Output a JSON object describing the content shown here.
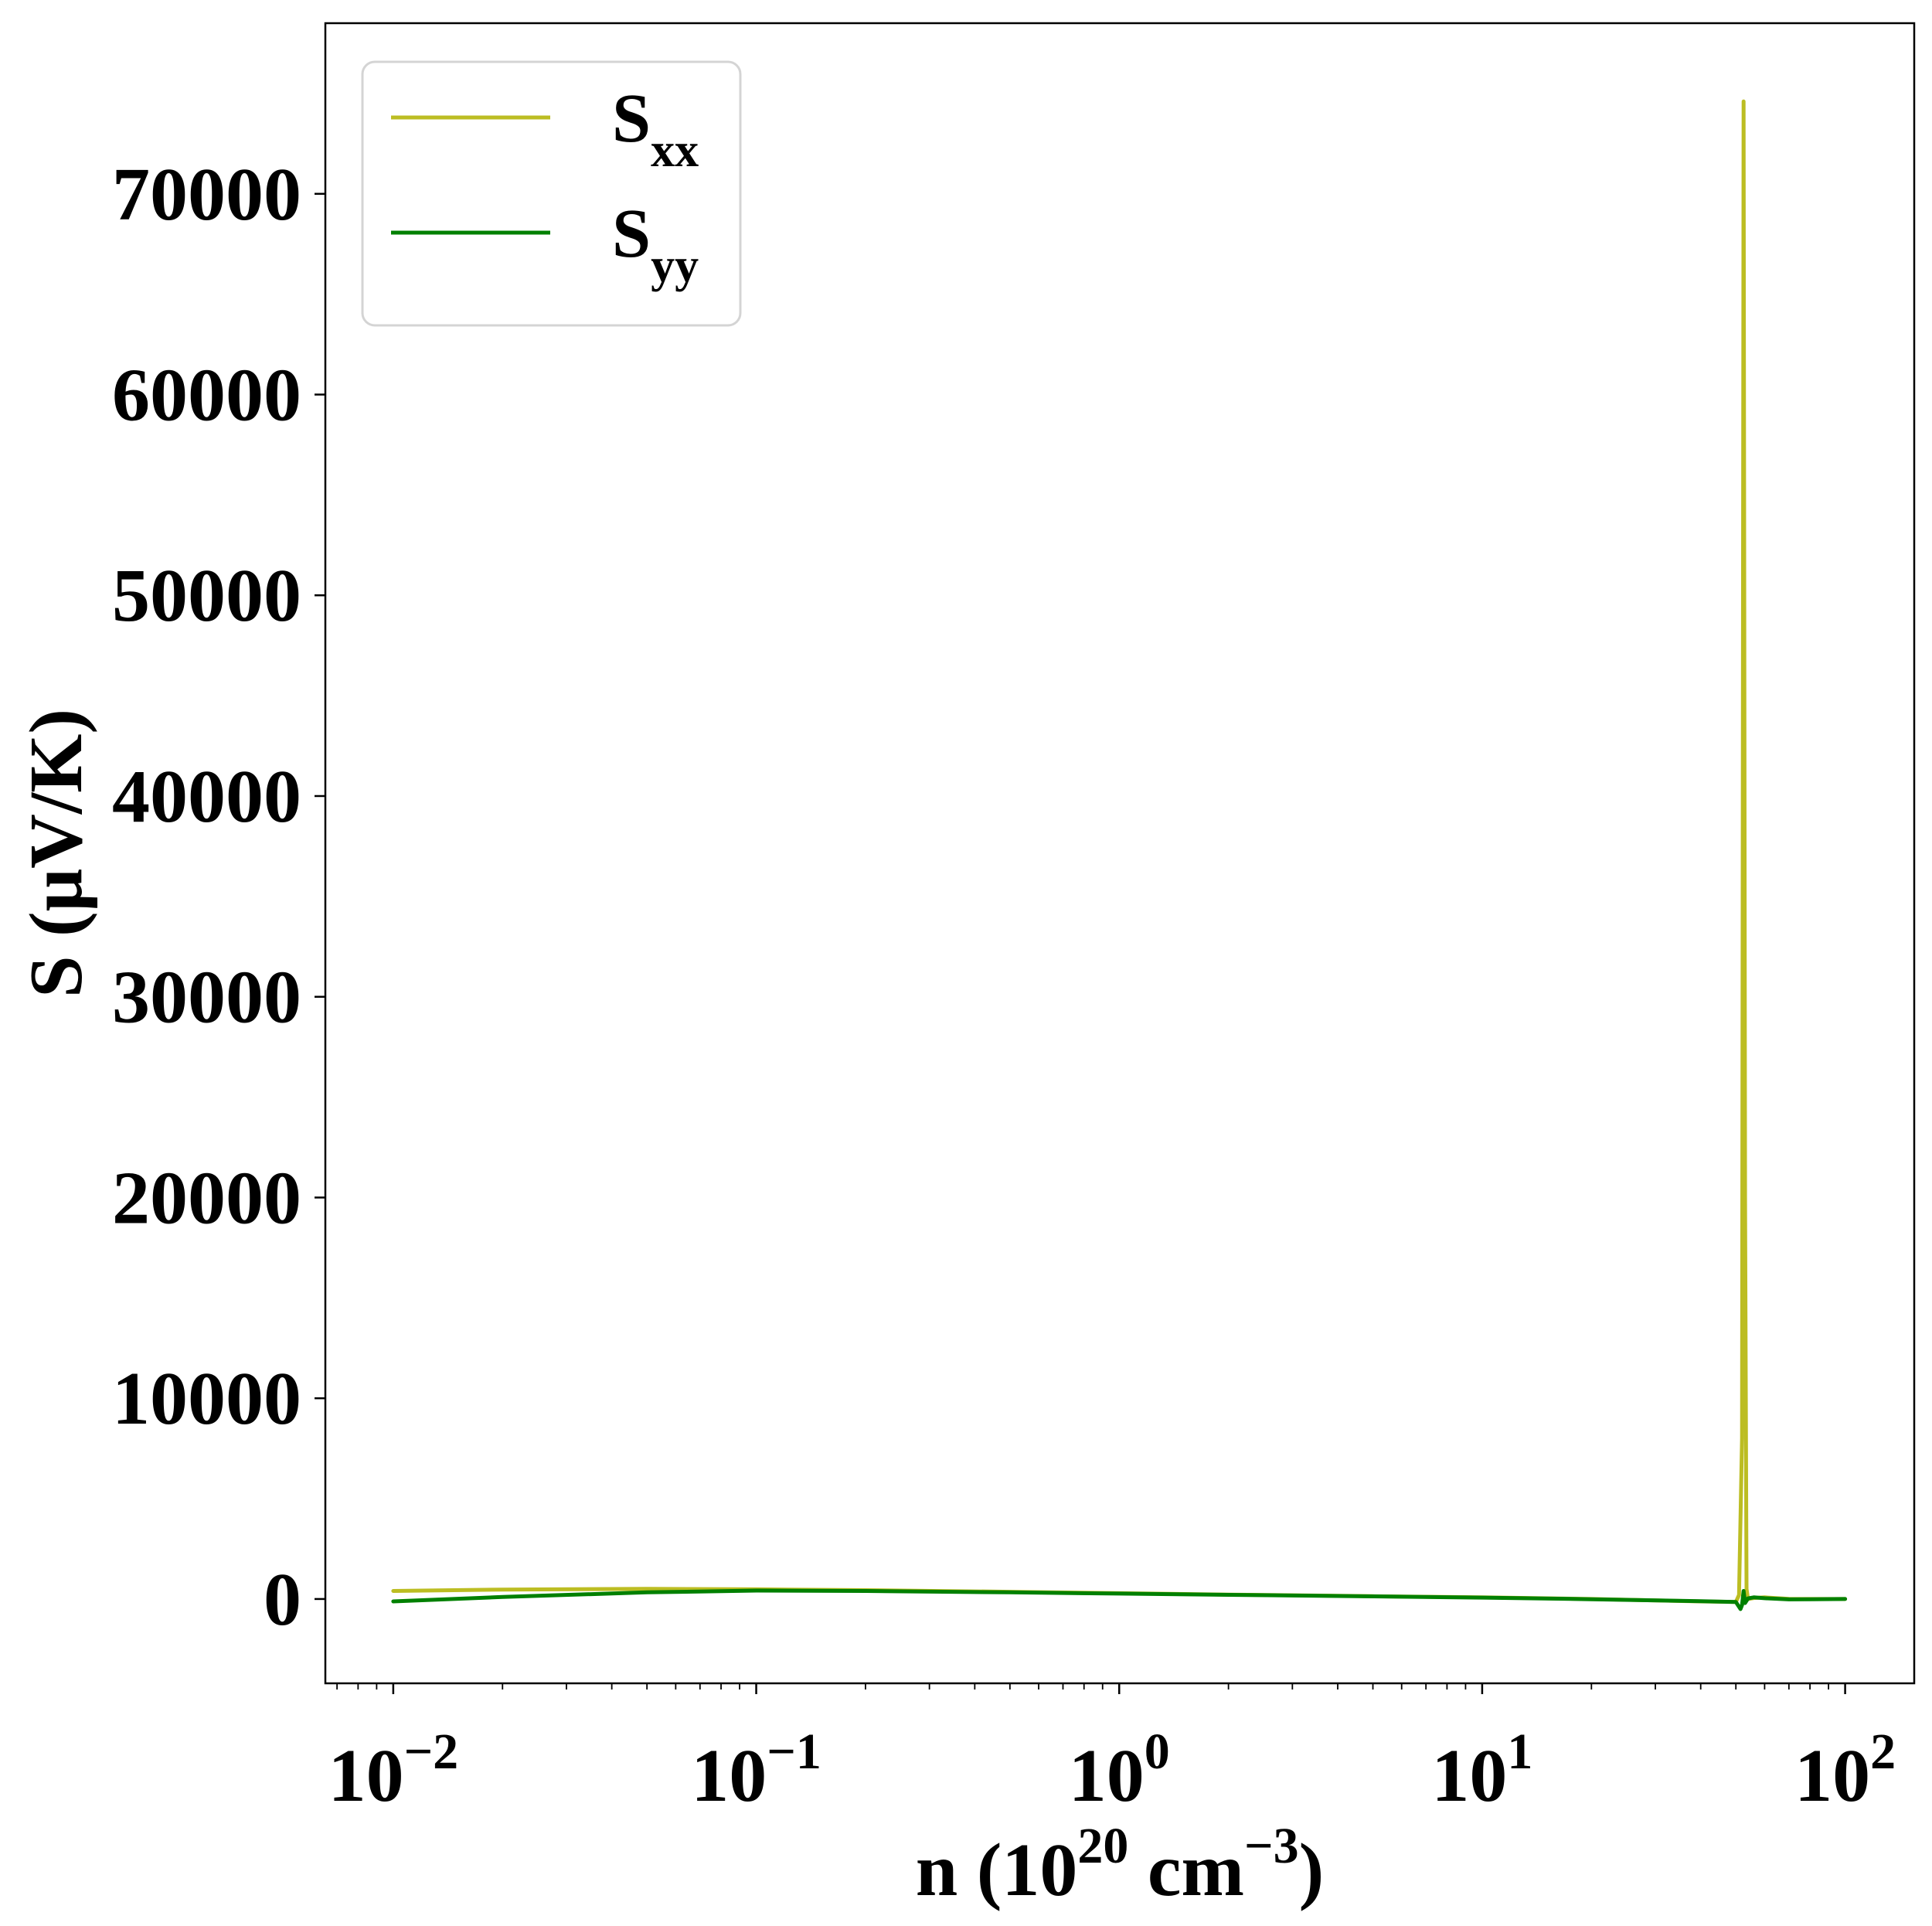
{
  "chart_data": {
    "type": "line",
    "xscale": "log",
    "xlim": [
      0.0065,
      155
    ],
    "ylim": [
      -4200,
      78500
    ],
    "xticks": [
      {
        "value": 0.01,
        "base": "10",
        "exp": "−2"
      },
      {
        "value": 0.1,
        "base": "10",
        "exp": "−1"
      },
      {
        "value": 1,
        "base": "10",
        "exp": "0"
      },
      {
        "value": 10,
        "base": "10",
        "exp": "1"
      },
      {
        "value": 100,
        "base": "10",
        "exp": "2"
      }
    ],
    "yticks": [
      0,
      10000,
      20000,
      30000,
      40000,
      50000,
      60000,
      70000
    ],
    "xlabel": {
      "pre": "n (10",
      "sup1": "20",
      "mid": " cm",
      "sup2": "−3",
      "post": ")"
    },
    "ylabel": "S (μV/K)",
    "legend_position": "top-left",
    "series": [
      {
        "name": "S",
        "sub": "xx",
        "color": "#bcbd22",
        "x": [
          0.01,
          0.02,
          0.05,
          0.1,
          0.2,
          0.5,
          1,
          2,
          5,
          10,
          20,
          40,
          50,
          51,
          52,
          52.5,
          53,
          53.5,
          54,
          56,
          60,
          70,
          80,
          100
        ],
        "y": [
          400,
          470,
          510,
          480,
          440,
          360,
          290,
          220,
          140,
          80,
          0,
          -120,
          -150,
          200,
          8000,
          74600,
          20000,
          500,
          0,
          50,
          80,
          10,
          0,
          0
        ]
      },
      {
        "name": "S",
        "sub": "yy",
        "color": "#008000",
        "x": [
          0.01,
          0.02,
          0.05,
          0.1,
          0.2,
          0.5,
          1,
          2,
          5,
          10,
          20,
          40,
          50,
          51.5,
          52,
          52.5,
          53,
          54,
          56,
          60,
          70,
          80,
          100
        ],
        "y": [
          -120,
          100,
          330,
          420,
          400,
          330,
          270,
          210,
          130,
          70,
          -10,
          -110,
          -150,
          -500,
          -300,
          400,
          -200,
          30,
          80,
          40,
          -20,
          -10,
          0
        ]
      }
    ]
  }
}
